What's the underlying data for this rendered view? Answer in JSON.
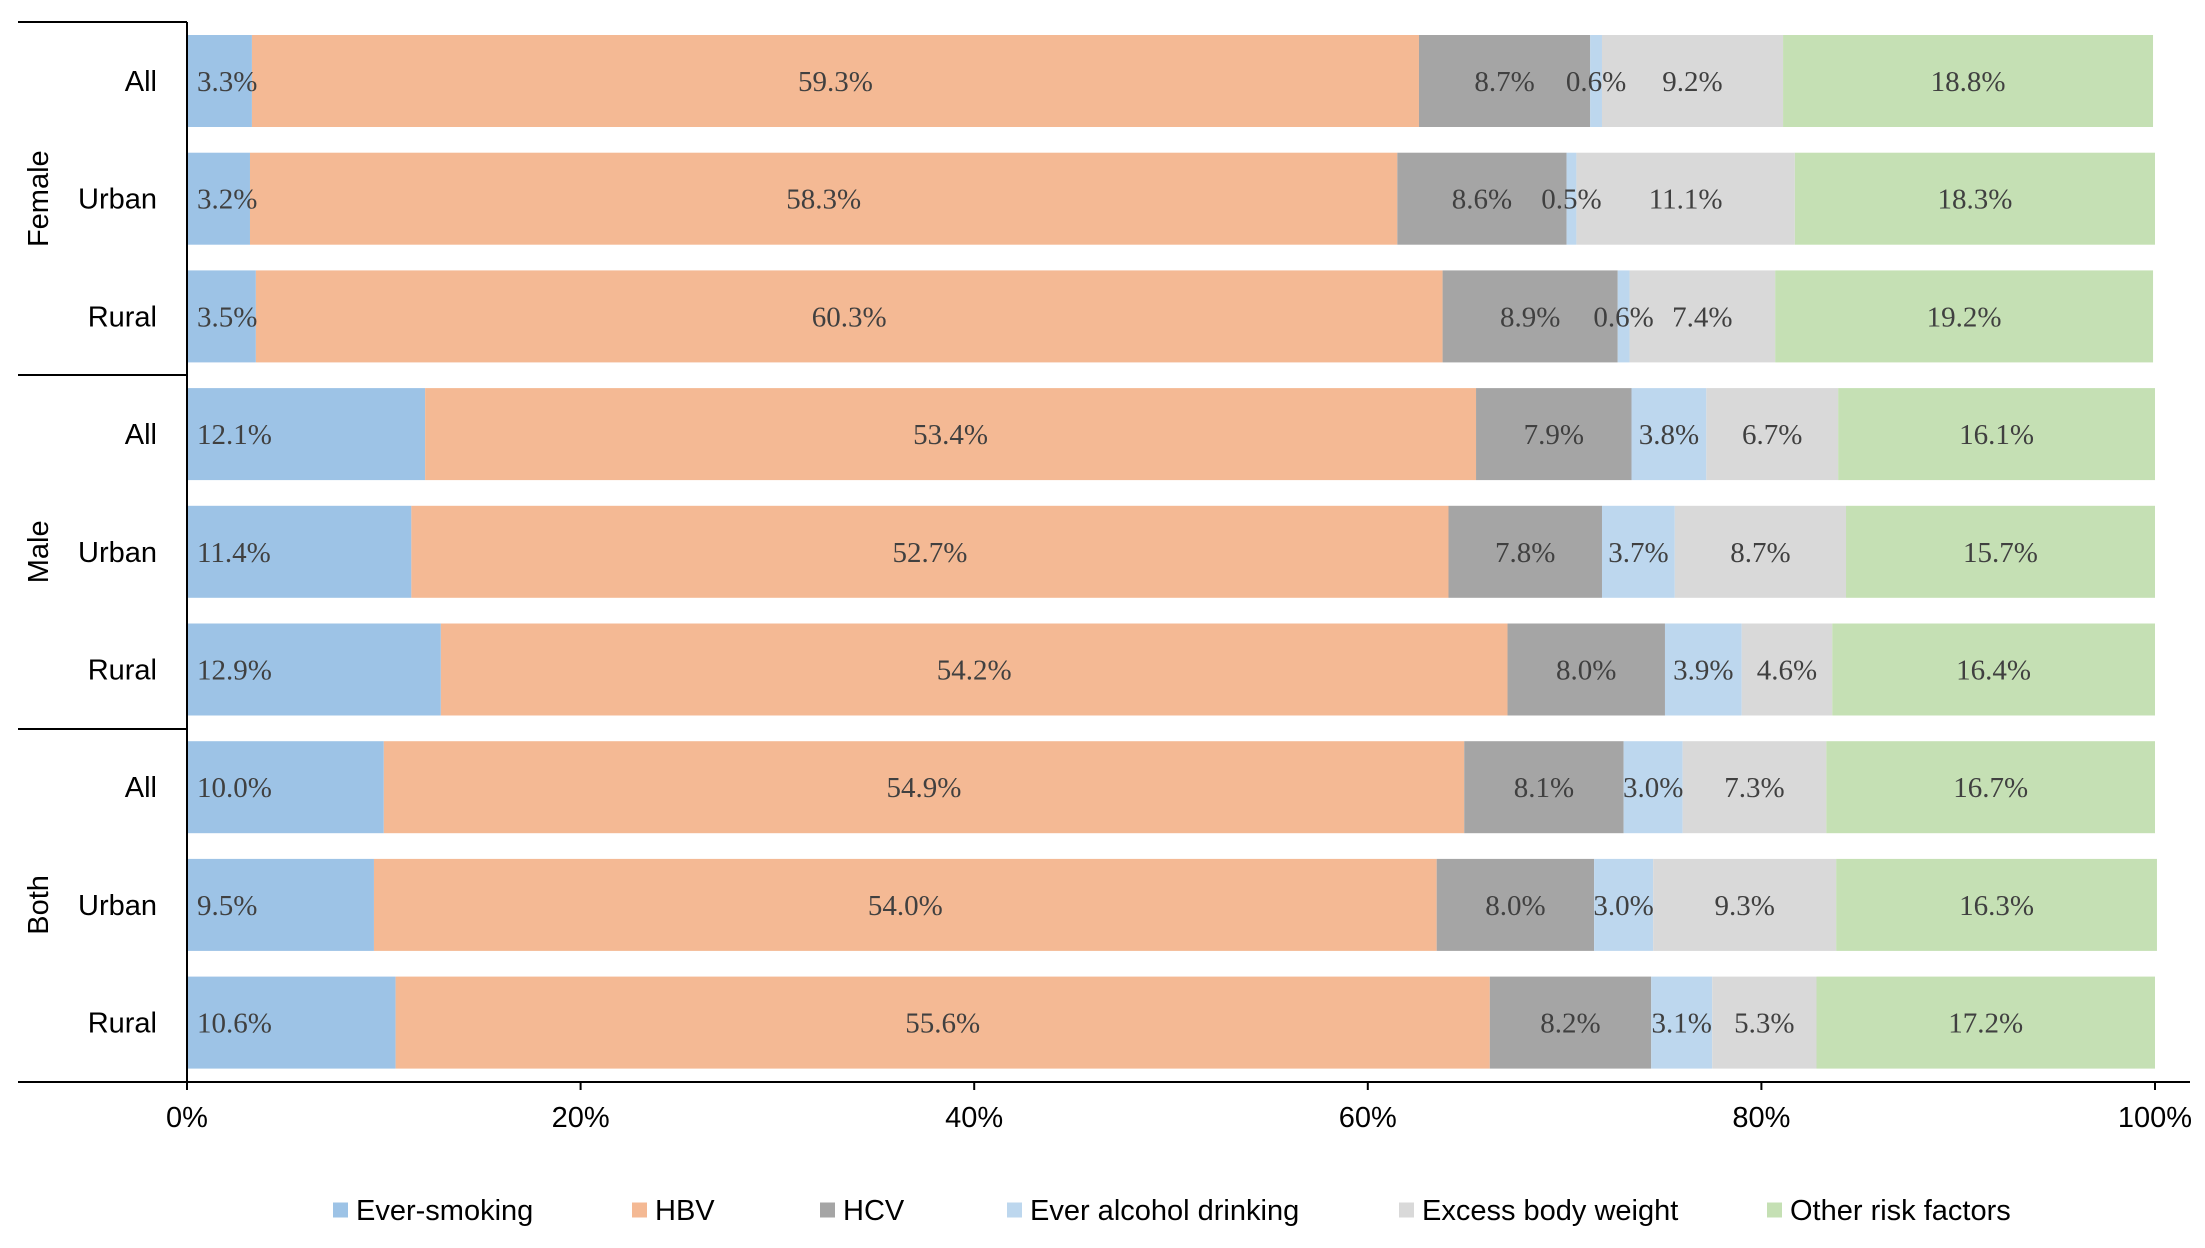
{
  "chart_data": {
    "type": "bar",
    "orientation": "horizontal",
    "stacked": "percent",
    "groups": [
      {
        "label": "Female",
        "rows": [
          "All",
          "Urban",
          "Rural"
        ]
      },
      {
        "label": "Male",
        "rows": [
          "All",
          "Urban",
          "Rural"
        ]
      },
      {
        "label": "Both",
        "rows": [
          "All",
          "Urban",
          "Rural"
        ]
      }
    ],
    "categories": [
      "All",
      "Urban",
      "Rural",
      "All",
      "Urban",
      "Rural",
      "All",
      "Urban",
      "Rural"
    ],
    "series": [
      {
        "name": "Ever-smoking",
        "color": "#9dc3e6",
        "values": [
          3.3,
          3.2,
          3.5,
          12.1,
          11.4,
          12.9,
          10.0,
          9.5,
          10.6
        ],
        "labels": [
          "3.3%",
          "3.2%",
          "3.5%",
          "12.1%",
          "11.4%",
          "12.9%",
          "10.0%",
          "9.5%",
          "10.6%"
        ]
      },
      {
        "name": "HBV",
        "color": "#f4b994",
        "values": [
          59.3,
          58.3,
          60.3,
          53.4,
          52.7,
          54.2,
          54.9,
          54.0,
          55.6
        ],
        "labels": [
          "59.3%",
          "58.3%",
          "60.3%",
          "53.4%",
          "52.7%",
          "54.2%",
          "54.9%",
          "54.0%",
          "55.6%"
        ]
      },
      {
        "name": "HCV",
        "color": "#a5a5a5",
        "values": [
          8.7,
          8.6,
          8.9,
          7.9,
          7.8,
          8.0,
          8.1,
          8.0,
          8.2
        ],
        "labels": [
          "8.7%",
          "8.6%",
          "8.9%",
          "7.9%",
          "7.8%",
          "8.0%",
          "8.1%",
          "8.0%",
          "8.2%"
        ]
      },
      {
        "name": "Ever alcohol drinking",
        "color": "#bdd7ee",
        "values": [
          0.6,
          0.5,
          0.6,
          3.8,
          3.7,
          3.9,
          3.0,
          3.0,
          3.1
        ],
        "labels": [
          "0.6%",
          "0.5%",
          "0.6%",
          "3.8%",
          "3.7%",
          "3.9%",
          "3.0%",
          "3.0%",
          "3.1%"
        ]
      },
      {
        "name": "Excess body weight",
        "color": "#d9d9d9",
        "values": [
          9.2,
          11.1,
          7.4,
          6.7,
          8.7,
          4.6,
          7.3,
          9.3,
          5.3
        ],
        "labels": [
          "9.2%",
          "11.1%",
          "7.4%",
          "6.7%",
          "8.7%",
          "4.6%",
          "7.3%",
          "9.3%",
          "5.3%"
        ]
      },
      {
        "name": "Other risk factors",
        "color": "#c5e0b4",
        "values": [
          18.8,
          18.3,
          19.2,
          16.1,
          15.7,
          16.4,
          16.7,
          16.3,
          17.2
        ],
        "labels": [
          "18.8%",
          "18.3%",
          "19.2%",
          "16.1%",
          "15.7%",
          "16.4%",
          "16.7%",
          "16.3%",
          "17.2%"
        ]
      }
    ],
    "xlim": [
      0,
      100
    ],
    "x_ticks": [
      "0%",
      "20%",
      "40%",
      "60%",
      "80%",
      "100%"
    ],
    "grid": false,
    "legend_position": "bottom"
  },
  "colors": {
    "axis": "#000000",
    "label_text": "#404040"
  }
}
